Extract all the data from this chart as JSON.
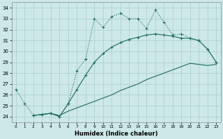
{
  "xlabel": "Humidex (Indice chaleur)",
  "ylabel": "",
  "xlim": [
    -0.5,
    23.5
  ],
  "ylim": [
    23.5,
    34.5
  ],
  "yticks": [
    24,
    25,
    26,
    27,
    28,
    29,
    30,
    31,
    32,
    33,
    34
  ],
  "xticks": [
    0,
    1,
    2,
    3,
    4,
    5,
    6,
    7,
    8,
    9,
    10,
    11,
    12,
    13,
    14,
    15,
    16,
    17,
    18,
    19,
    20,
    21,
    22,
    23
  ],
  "bg_color": "#cce8e8",
  "grid_color": "#aacccc",
  "line_color": "#1e6b5e",
  "line1_x": [
    0,
    1,
    2,
    3,
    4,
    5,
    6,
    7,
    8,
    9,
    10,
    11,
    12,
    13,
    14,
    15,
    16,
    17,
    18,
    19,
    20,
    21,
    22,
    23
  ],
  "line1_y": [
    26.5,
    25.2,
    24.1,
    24.2,
    24.3,
    24.0,
    25.2,
    28.2,
    29.3,
    33.0,
    32.2,
    33.2,
    33.5,
    33.0,
    33.0,
    32.1,
    33.8,
    32.7,
    31.5,
    31.6,
    31.2,
    31.0,
    30.2,
    29.0
  ],
  "line2_x": [
    2,
    3,
    4,
    5,
    6,
    7,
    8,
    9,
    10,
    11,
    12,
    13,
    14,
    15,
    16,
    17,
    18,
    19,
    20,
    21,
    22,
    23
  ],
  "line2_y": [
    24.1,
    24.2,
    24.3,
    24.1,
    24.5,
    24.8,
    25.1,
    25.4,
    25.7,
    26.0,
    26.4,
    26.7,
    27.0,
    27.4,
    27.7,
    28.0,
    28.3,
    28.6,
    28.9,
    28.8,
    28.7,
    28.8
  ],
  "line3_x": [
    2,
    3,
    4,
    5,
    6,
    7,
    8,
    9,
    10,
    11,
    12,
    13,
    14,
    15,
    16,
    17,
    18,
    19,
    20,
    21,
    22,
    23
  ],
  "line3_y": [
    24.1,
    24.2,
    24.3,
    24.0,
    25.2,
    26.5,
    27.8,
    29.0,
    29.8,
    30.4,
    30.8,
    31.1,
    31.3,
    31.5,
    31.6,
    31.5,
    31.4,
    31.2,
    31.2,
    31.0,
    30.2,
    29.0
  ]
}
